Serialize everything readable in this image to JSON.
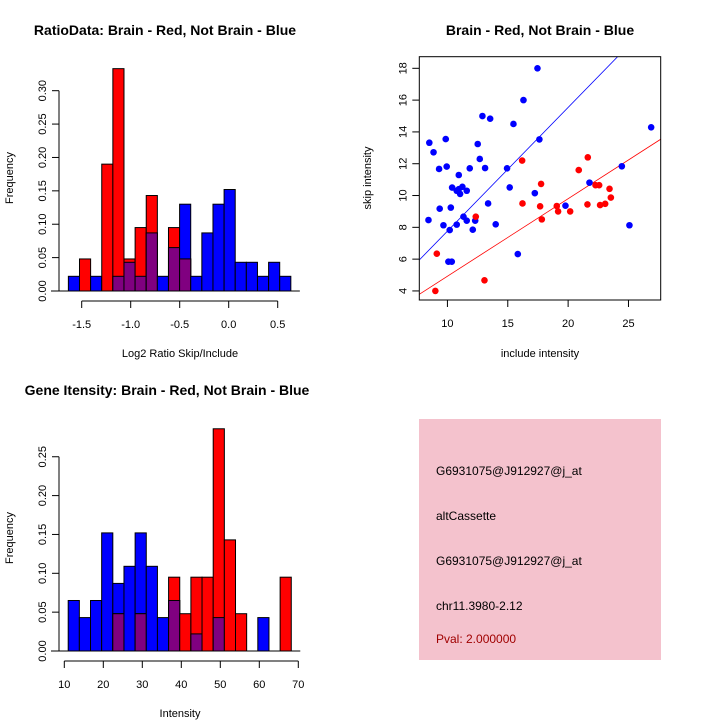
{
  "colors": {
    "red": "#ff0000",
    "blue": "#0000ff",
    "overlap": "#800080",
    "info_bg": "#f4c2cd",
    "pval": "#a00000"
  },
  "chart_data": [
    {
      "type": "bar",
      "subtype": "overlaid-histogram",
      "title": "RatioData: Brain - Red, Not Brain - Blue",
      "xlabel": "Log2 Ratio Skip/Include",
      "ylabel": "Frequency",
      "xticks": [
        -1.5,
        -1.0,
        -0.5,
        0.0,
        0.5
      ],
      "xtick_labels": [
        "-1.5",
        "-1.0",
        "-0.5",
        "0.0",
        "0.5"
      ],
      "yticks": [
        0,
        0.05,
        0.1,
        0.15,
        0.2,
        0.25,
        0.3
      ],
      "ytick_labels": [
        "0.00",
        "0.05",
        "0.10",
        "0.15",
        "0.20",
        "0.25",
        "0.30"
      ],
      "bin_start": -1.636,
      "bin_width": 0.1135,
      "series": [
        {
          "name": "Brain",
          "color": "red",
          "values": [
            0,
            0.048,
            0,
            0.19,
            0.333,
            0.048,
            0.095,
            0.143,
            0,
            0.095,
            0.048,
            0,
            0,
            0,
            0,
            0,
            0,
            0,
            0,
            0
          ]
        },
        {
          "name": "Not Brain",
          "color": "blue",
          "values": [
            0.022,
            0,
            0.022,
            0,
            0.022,
            0.043,
            0.022,
            0.087,
            0.022,
            0.065,
            0.13,
            0.022,
            0.087,
            0.13,
            0.152,
            0.043,
            0.043,
            0.022,
            0.043,
            0.022
          ]
        }
      ]
    },
    {
      "type": "scatter",
      "title": "Brain - Red, Not Brain - Blue",
      "xlabel": "include intensity",
      "ylabel": "skip intensity",
      "xlim": [
        7.67,
        27.67
      ],
      "ylim": [
        3.43,
        18.73
      ],
      "xticks": [
        10,
        15,
        20,
        25
      ],
      "xtick_labels": [
        "10",
        "15",
        "20",
        "25"
      ],
      "yticks": [
        4,
        6,
        8,
        10,
        12,
        14,
        16,
        18
      ],
      "ytick_labels": [
        "4",
        "6",
        "8",
        "10",
        "12",
        "14",
        "16",
        "18"
      ],
      "series": [
        {
          "name": "Not Brain",
          "color": "blue",
          "fit": {
            "slope": 0.778,
            "intercept": -0.02
          },
          "points": [
            [
              8.5,
              13.32
            ],
            [
              8.85,
              12.72
            ],
            [
              9.86,
              13.55
            ],
            [
              9.31,
              11.67
            ],
            [
              9.94,
              11.82
            ],
            [
              8.43,
              8.46
            ],
            [
              9.36,
              9.17
            ],
            [
              9.67,
              8.13
            ],
            [
              10.19,
              7.83
            ],
            [
              10.08,
              5.84
            ],
            [
              10.36,
              5.84
            ],
            [
              10.28,
              9.24
            ],
            [
              10.39,
              10.5
            ],
            [
              10.77,
              8.17
            ],
            [
              10.94,
              11.29
            ],
            [
              10.77,
              10.3
            ],
            [
              11.05,
              10.1
            ],
            [
              10.94,
              10.4
            ],
            [
              11.24,
              10.55
            ],
            [
              11.33,
              8.67
            ],
            [
              11.6,
              8.42
            ],
            [
              11.6,
              10.3
            ],
            [
              11.85,
              11.71
            ],
            [
              12.1,
              7.85
            ],
            [
              12.3,
              8.42
            ],
            [
              12.51,
              13.24
            ],
            [
              12.68,
              12.3
            ],
            [
              12.9,
              15.0
            ],
            [
              13.12,
              11.73
            ],
            [
              13.54,
              14.83
            ],
            [
              13.37,
              9.5
            ],
            [
              14.0,
              8.19
            ],
            [
              14.94,
              11.71
            ],
            [
              15.16,
              10.51
            ],
            [
              15.47,
              14.5
            ],
            [
              15.83,
              6.32
            ],
            [
              16.3,
              16.0
            ],
            [
              17.24,
              10.15
            ],
            [
              17.46,
              18.0
            ],
            [
              17.62,
              13.53
            ],
            [
              19.78,
              9.36
            ],
            [
              21.77,
              10.81
            ],
            [
              24.45,
              11.84
            ],
            [
              25.08,
              8.13
            ],
            [
              26.88,
              14.29
            ]
          ]
        },
        {
          "name": "Brain",
          "color": "red",
          "fit": {
            "slope": 0.4875,
            "intercept": 0.05
          },
          "points": [
            [
              9.0,
              4.0
            ],
            [
              9.12,
              6.34
            ],
            [
              12.35,
              8.67
            ],
            [
              13.07,
              4.67
            ],
            [
              16.19,
              12.2
            ],
            [
              16.22,
              9.5
            ],
            [
              17.68,
              9.32
            ],
            [
              17.76,
              10.73
            ],
            [
              17.82,
              8.5
            ],
            [
              19.06,
              9.34
            ],
            [
              19.17,
              9.0
            ],
            [
              20.17,
              9.0
            ],
            [
              20.88,
              11.6
            ],
            [
              21.63,
              12.4
            ],
            [
              21.6,
              9.44
            ],
            [
              22.27,
              10.65
            ],
            [
              22.57,
              10.65
            ],
            [
              22.65,
              9.4
            ],
            [
              23.07,
              9.48
            ],
            [
              23.43,
              10.42
            ],
            [
              23.54,
              9.87
            ]
          ]
        }
      ]
    },
    {
      "type": "bar",
      "subtype": "overlaid-histogram",
      "title": "Gene Itensity: Brain - Red, Not Brain - Blue",
      "xlabel": "Intensity",
      "ylabel": "Frequency",
      "xticks": [
        10,
        20,
        30,
        40,
        50,
        60,
        70
      ],
      "xtick_labels": [
        "10",
        "20",
        "30",
        "40",
        "50",
        "60",
        "70"
      ],
      "yticks": [
        0,
        0.05,
        0.1,
        0.15,
        0.2,
        0.25
      ],
      "ytick_labels": [
        "0.00",
        "0.05",
        "0.10",
        "0.15",
        "0.20",
        "0.25"
      ],
      "bin_start": 11.0,
      "bin_width": 2.86,
      "series": [
        {
          "name": "Brain",
          "color": "red",
          "values": [
            0,
            0,
            0,
            0,
            0.048,
            0,
            0.048,
            0,
            0,
            0.095,
            0.048,
            0.095,
            0.095,
            0.286,
            0.143,
            0.048,
            0,
            0,
            0,
            0.095
          ]
        },
        {
          "name": "Not Brain",
          "color": "blue",
          "values": [
            0.065,
            0.043,
            0.065,
            0.152,
            0.087,
            0.109,
            0.152,
            0.109,
            0.043,
            0.065,
            0,
            0.022,
            0,
            0.043,
            0,
            0,
            0,
            0.043,
            0,
            0
          ]
        }
      ]
    }
  ],
  "info_box": {
    "probe_id": "G6931075@J912927@j_at",
    "event_type": "altCassette",
    "gene_id": "G6931075@J912927@j_at",
    "location": "chr11.3980-2.12",
    "pval": "Pval: 2.000000"
  }
}
